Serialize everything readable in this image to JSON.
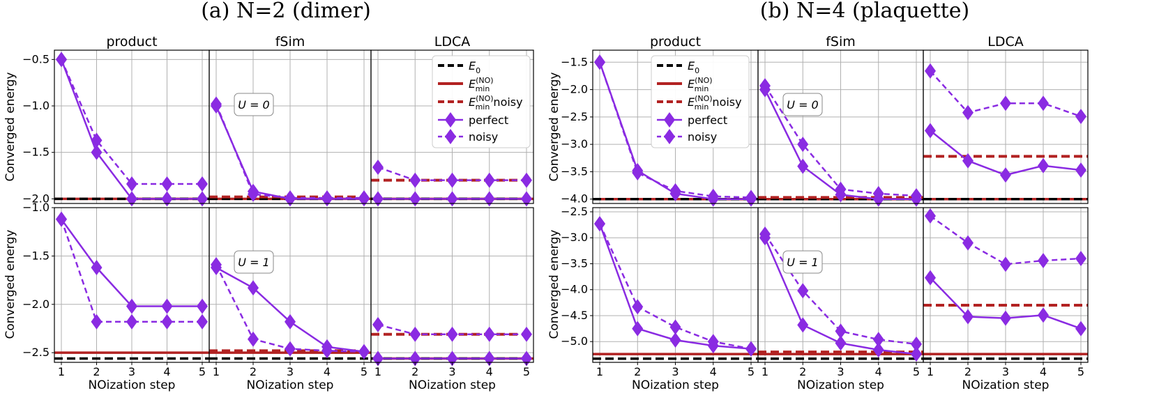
{
  "figure_titles": [
    "(a) N=2 (dimer)",
    "(b) N=4 (plaquette)"
  ],
  "column_titles": [
    "product",
    "fSim",
    "LDCA"
  ],
  "x_label": "NOization step",
  "y_label": "Converged energy",
  "row_annotations": [
    "U = 0",
    "U = 1"
  ],
  "legend": [
    {
      "key": "E0",
      "label": "E",
      "sub": "0",
      "sup": "",
      "suffix": ""
    },
    {
      "key": "Emin",
      "label": "E",
      "sub": "min",
      "sup": "(NO)",
      "suffix": ""
    },
    {
      "key": "Emin_noisy",
      "label": "E",
      "sub": "min",
      "sup": "(NO)",
      "suffix": " noisy"
    },
    {
      "key": "perfect",
      "label": "perfect",
      "sub": "",
      "sup": "",
      "suffix": ""
    },
    {
      "key": "noisy",
      "label": "noisy",
      "sub": "",
      "sup": "",
      "suffix": ""
    }
  ],
  "colors": {
    "perfect": "#8a2be2",
    "emin": "#b22222",
    "e0": "#000000",
    "grid": "#b0b0b0"
  },
  "chart_data": [
    {
      "type": "line",
      "figure": "(a) N=2 (dimer)",
      "row": "U = 0",
      "x": [
        1,
        2,
        3,
        4,
        5
      ],
      "ylim": [
        -2.05,
        -0.4
      ],
      "yticks": [
        -2.0,
        -1.5,
        -1.0,
        -0.5
      ],
      "panels": [
        {
          "column": "product",
          "perfect": [
            -0.5,
            -1.5,
            -2.0,
            -2.0,
            -2.0
          ],
          "noisy": [
            -0.5,
            -1.37,
            -1.84,
            -1.84,
            -1.84
          ],
          "E0": -2.0,
          "Emin": -2.0,
          "Emin_noisy": null
        },
        {
          "column": "fSim",
          "perfect": [
            -1.0,
            -1.92,
            -2.0,
            -2.0,
            -2.0
          ],
          "noisy": [
            -0.98,
            -1.95,
            -1.99,
            -1.99,
            -1.99
          ],
          "E0": -2.0,
          "Emin": -2.0,
          "Emin_noisy": -1.98
        },
        {
          "column": "LDCA",
          "perfect": [
            -2.0,
            -2.0,
            -2.0,
            -2.0,
            -2.0
          ],
          "noisy": [
            -1.66,
            -1.8,
            -1.8,
            -1.8,
            -1.8
          ],
          "E0": -2.0,
          "Emin": -2.0,
          "Emin_noisy": -1.8
        }
      ]
    },
    {
      "type": "line",
      "figure": "(a) N=2 (dimer)",
      "row": "U = 1",
      "x": [
        1,
        2,
        3,
        4,
        5
      ],
      "ylim": [
        -2.6,
        -1.0
      ],
      "yticks": [
        -2.5,
        -2.0,
        -1.5,
        -1.0
      ],
      "panels": [
        {
          "column": "product",
          "perfect": [
            -1.12,
            -1.62,
            -2.02,
            -2.02,
            -2.02
          ],
          "noisy": [
            -1.12,
            -2.18,
            -2.18,
            -2.18,
            -2.18
          ],
          "E0": -2.56,
          "Emin": -2.5,
          "Emin_noisy": null
        },
        {
          "column": "fSim",
          "perfect": [
            -1.62,
            -1.83,
            -2.18,
            -2.44,
            -2.49
          ],
          "noisy": [
            -1.59,
            -2.36,
            -2.46,
            -2.48,
            -2.49
          ],
          "E0": -2.56,
          "Emin": -2.5,
          "Emin_noisy": -2.48
        },
        {
          "column": "LDCA",
          "perfect": [
            -2.56,
            -2.56,
            -2.56,
            -2.56,
            -2.56
          ],
          "noisy": [
            -2.21,
            -2.31,
            -2.31,
            -2.31,
            -2.31
          ],
          "E0": -2.56,
          "Emin": -2.56,
          "Emin_noisy": -2.31
        }
      ]
    },
    {
      "type": "line",
      "figure": "(b) N=4 (plaquette)",
      "row": "U = 0",
      "x": [
        1,
        2,
        3,
        4,
        5
      ],
      "ylim": [
        -4.08,
        -1.28
      ],
      "yticks": [
        -4.0,
        -3.5,
        -3.0,
        -2.5,
        -2.0,
        -1.5
      ],
      "panels": [
        {
          "column": "product",
          "perfect": [
            -1.5,
            -3.48,
            -3.9,
            -4.0,
            -4.0
          ],
          "noisy": [
            -1.5,
            -3.52,
            -3.85,
            -3.95,
            -3.97
          ],
          "E0": -4.0,
          "Emin": -4.0,
          "Emin_noisy": null
        },
        {
          "column": "fSim",
          "perfect": [
            -2.0,
            -3.4,
            -3.92,
            -4.0,
            -4.0
          ],
          "noisy": [
            -1.93,
            -3.0,
            -3.82,
            -3.9,
            -3.94
          ],
          "E0": -4.0,
          "Emin": -4.0,
          "Emin_noisy": -3.97
        },
        {
          "column": "LDCA",
          "perfect": [
            -2.75,
            -3.3,
            -3.56,
            -3.39,
            -3.47
          ],
          "noisy": [
            -1.66,
            -2.42,
            -2.25,
            -2.25,
            -2.49
          ],
          "E0": -4.0,
          "Emin": -4.0,
          "Emin_noisy": -3.22
        }
      ]
    },
    {
      "type": "line",
      "figure": "(b) N=4 (plaquette)",
      "row": "U = 1",
      "x": [
        1,
        2,
        3,
        4,
        5
      ],
      "ylim": [
        -5.4,
        -2.42
      ],
      "yticks": [
        -5.0,
        -4.5,
        -4.0,
        -3.5,
        -3.0,
        -2.5
      ],
      "panels": [
        {
          "column": "product",
          "perfect": [
            -2.73,
            -4.75,
            -4.97,
            -5.08,
            -5.14
          ],
          "noisy": [
            -2.73,
            -4.33,
            -4.72,
            -5.0,
            -5.14
          ],
          "E0": -5.33,
          "Emin": -5.24,
          "Emin_noisy": null
        },
        {
          "column": "fSim",
          "perfect": [
            -3.0,
            -4.68,
            -5.03,
            -5.16,
            -5.24
          ],
          "noisy": [
            -2.93,
            -4.02,
            -4.8,
            -4.96,
            -5.05
          ],
          "E0": -5.33,
          "Emin": -5.24,
          "Emin_noisy": -5.2
        },
        {
          "column": "LDCA",
          "perfect": [
            -3.77,
            -4.52,
            -4.55,
            -4.49,
            -4.75
          ],
          "noisy": [
            -2.58,
            -3.1,
            -3.51,
            -3.44,
            -3.4
          ],
          "E0": -5.33,
          "Emin": -5.24,
          "Emin_noisy": -4.3
        }
      ]
    }
  ]
}
